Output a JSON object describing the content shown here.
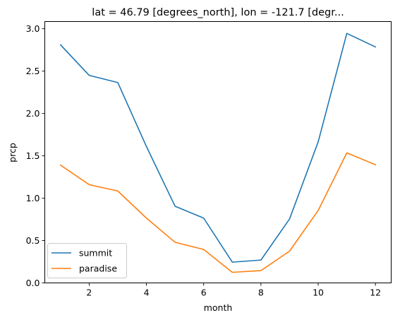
{
  "chart_data": {
    "type": "line",
    "title": "lat = 46.79 [degrees_north], lon = -121.7 [degr...",
    "xlabel": "month",
    "ylabel": "prcp",
    "xlim": [
      0.45,
      12.55
    ],
    "ylim": [
      0.0,
      3.085
    ],
    "xticks": [
      2,
      4,
      6,
      8,
      10,
      12
    ],
    "yticks": [
      0.0,
      0.5,
      1.0,
      1.5,
      2.0,
      2.5,
      3.0
    ],
    "ytick_labels": [
      "0.0",
      "0.5",
      "1.0",
      "1.5",
      "2.0",
      "2.5",
      "3.0"
    ],
    "grid": false,
    "legend_position": "lower-left",
    "x": [
      1,
      2,
      3,
      4,
      5,
      6,
      7,
      8,
      9,
      10,
      11,
      12
    ],
    "series": [
      {
        "name": "summit",
        "color": "#1f77b4",
        "values": [
          2.81,
          2.45,
          2.365,
          1.61,
          0.905,
          0.765,
          0.245,
          0.27,
          0.755,
          1.665,
          2.945,
          2.785
        ]
      },
      {
        "name": "paradise",
        "color": "#ff7f0e",
        "values": [
          1.39,
          1.16,
          1.085,
          0.765,
          0.48,
          0.395,
          0.125,
          0.145,
          0.375,
          0.855,
          1.535,
          1.395
        ]
      }
    ]
  }
}
